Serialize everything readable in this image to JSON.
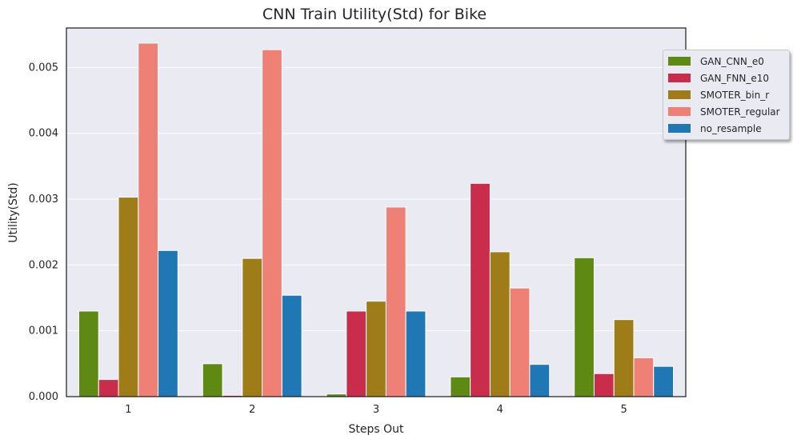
{
  "chart_data": {
    "type": "bar",
    "title": "CNN Train Utility(Std) for Bike",
    "xlabel": "Steps Out",
    "ylabel": "Utility(Std)",
    "categories": [
      "1",
      "2",
      "3",
      "4",
      "5"
    ],
    "ylim": [
      0,
      0.0056
    ],
    "yticks": [
      "0.000",
      "0.001",
      "0.002",
      "0.003",
      "0.004",
      "0.005"
    ],
    "grid": true,
    "legend_position": "top-right",
    "series": [
      {
        "name": "GAN_CNN_e0",
        "color": "#5e8a14",
        "values": [
          0.0013,
          0.0005,
          4e-05,
          0.0003,
          0.00211
        ]
      },
      {
        "name": "GAN_FNN_e10",
        "color": "#c92d4b",
        "values": [
          0.00026,
          2e-05,
          0.0013,
          0.00324,
          0.00035
        ]
      },
      {
        "name": "SMOTER_bin_r",
        "color": "#9e7c17",
        "values": [
          0.00303,
          0.0021,
          0.00145,
          0.0022,
          0.00117
        ]
      },
      {
        "name": "SMOTER_regular",
        "color": "#ee8075",
        "values": [
          0.00537,
          0.00527,
          0.00288,
          0.00165,
          0.00059
        ]
      },
      {
        "name": "no_resample",
        "color": "#1f77b4",
        "values": [
          0.00222,
          0.00154,
          0.0013,
          0.00049,
          0.00046
        ]
      }
    ]
  }
}
